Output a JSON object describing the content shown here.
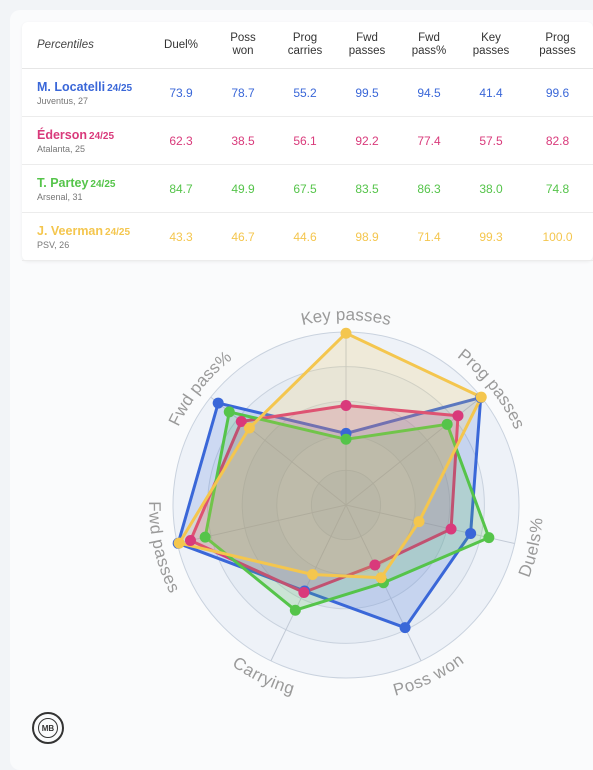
{
  "table": {
    "corner_label": "Percentiles",
    "columns": [
      [
        "Duel%"
      ],
      [
        "Poss",
        "won"
      ],
      [
        "Prog",
        "carries"
      ],
      [
        "Fwd",
        "passes"
      ],
      [
        "Fwd",
        "pass%"
      ],
      [
        "Key",
        "passes"
      ],
      [
        "Prog",
        "passes"
      ]
    ]
  },
  "logo_text": "MB",
  "chart_data": {
    "type": "radar",
    "axes": [
      "Key passes",
      "Prog passes",
      "Duels%",
      "Poss won",
      "Carrying",
      "Fwd passes",
      "Fwd pass%"
    ],
    "range": [
      0,
      100
    ],
    "series": [
      {
        "name": "M. Locatelli",
        "season": "24/25",
        "club": "Juventus, 27",
        "color": "#3a67d8",
        "table_values": [
          "73.9",
          "78.7",
          "55.2",
          "99.5",
          "94.5",
          "41.4",
          "99.6"
        ],
        "radar_values": [
          41.4,
          99.6,
          73.9,
          78.7,
          55.2,
          99.5,
          94.5
        ]
      },
      {
        "name": "Éderson",
        "season": "24/25",
        "club": "Atalanta, 25",
        "color": "#d93a7b",
        "table_values": [
          "62.3",
          "38.5",
          "56.1",
          "92.2",
          "77.4",
          "57.5",
          "82.8"
        ],
        "radar_values": [
          57.5,
          82.8,
          62.3,
          38.5,
          56.1,
          92.2,
          77.4
        ]
      },
      {
        "name": "T. Partey",
        "season": "24/25",
        "club": "Arsenal, 31",
        "color": "#55c44a",
        "table_values": [
          "84.7",
          "49.9",
          "67.5",
          "83.5",
          "86.3",
          "38.0",
          "74.8"
        ],
        "radar_values": [
          38.0,
          74.8,
          84.7,
          49.9,
          67.5,
          83.5,
          86.3
        ]
      },
      {
        "name": "J. Veerman",
        "season": "24/25",
        "club": "PSV, 26",
        "color": "#f4c64e",
        "table_values": [
          "43.3",
          "46.7",
          "44.6",
          "98.9",
          "71.4",
          "99.3",
          "100.0"
        ],
        "radar_values": [
          99.3,
          100.0,
          43.3,
          46.7,
          44.6,
          98.9,
          71.4
        ]
      }
    ]
  }
}
